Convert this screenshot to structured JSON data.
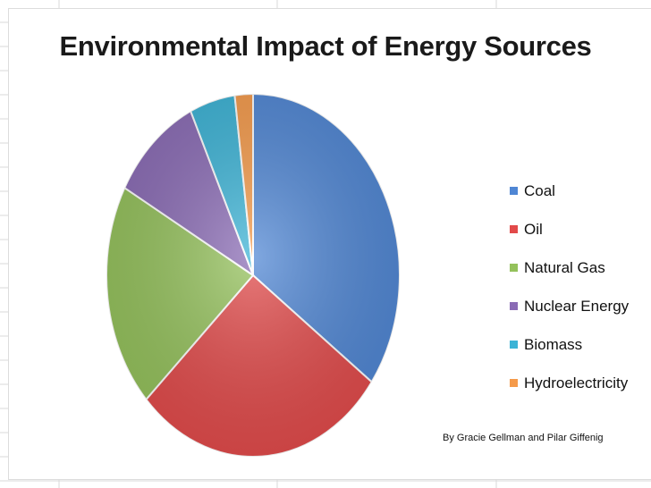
{
  "chart_data": {
    "type": "pie",
    "title": "Environmental Impact of Energy Sources",
    "categories": [
      "Coal",
      "Oil",
      "Natural Gas",
      "Nuclear Energy",
      "Biomass",
      "Hydroelectricity"
    ],
    "values": [
      35,
      28,
      20,
      10,
      5,
      2
    ],
    "colors": [
      "#4f86d4",
      "#e24a4a",
      "#94c15b",
      "#8a6bb5",
      "#3bb3d6",
      "#f59a4a"
    ],
    "start_angle_deg": 0,
    "legend_position": "right"
  },
  "footer": {
    "credit": "By Gracie Gellman and Pilar Giffenig"
  }
}
